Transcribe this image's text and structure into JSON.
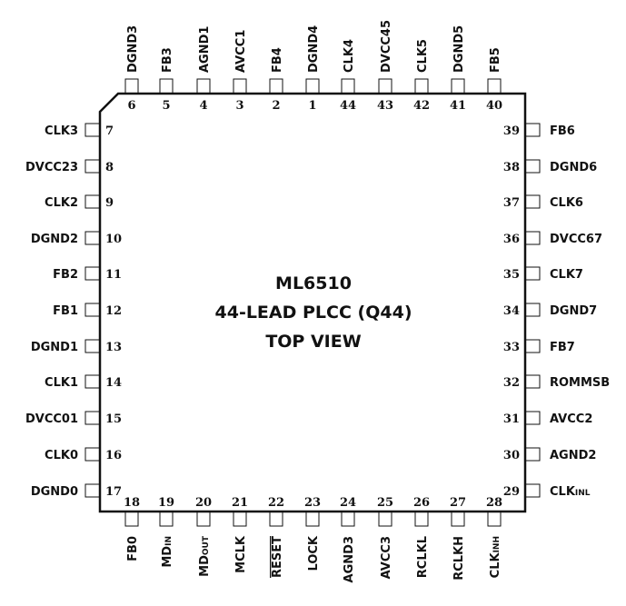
{
  "chip": {
    "title": "ML6510",
    "subtitle": "44-LEAD PLCC (Q44)",
    "view": "TOP VIEW"
  },
  "pins": {
    "top": [
      {
        "num": "6",
        "label": "DGND3"
      },
      {
        "num": "5",
        "label": "FB3"
      },
      {
        "num": "4",
        "label": "AGND1"
      },
      {
        "num": "3",
        "label": "AVCC1"
      },
      {
        "num": "2",
        "label": "FB4"
      },
      {
        "num": "1",
        "label": "DGND4"
      },
      {
        "num": "44",
        "label": "CLK4"
      },
      {
        "num": "43",
        "label": "DVCC45"
      },
      {
        "num": "42",
        "label": "CLK5"
      },
      {
        "num": "41",
        "label": "DGND5"
      },
      {
        "num": "40",
        "label": "FB5"
      }
    ],
    "left": [
      {
        "num": "7",
        "label": "CLK3"
      },
      {
        "num": "8",
        "label": "DVCC23"
      },
      {
        "num": "9",
        "label": "CLK2"
      },
      {
        "num": "10",
        "label": "DGND2"
      },
      {
        "num": "11",
        "label": "FB2"
      },
      {
        "num": "12",
        "label": "FB1"
      },
      {
        "num": "13",
        "label": "DGND1"
      },
      {
        "num": "14",
        "label": "CLK1"
      },
      {
        "num": "15",
        "label": "DVCC01"
      },
      {
        "num": "16",
        "label": "CLK0"
      },
      {
        "num": "17",
        "label": "DGND0"
      }
    ],
    "right": [
      {
        "num": "39",
        "label": "FB6"
      },
      {
        "num": "38",
        "label": "DGND6"
      },
      {
        "num": "37",
        "label": "CLK6"
      },
      {
        "num": "36",
        "label": "DVCC67"
      },
      {
        "num": "35",
        "label": "CLK7"
      },
      {
        "num": "34",
        "label": "DGND7"
      },
      {
        "num": "33",
        "label": "FB7"
      },
      {
        "num": "32",
        "label": "ROMMSB"
      },
      {
        "num": "31",
        "label": "AVCC2"
      },
      {
        "num": "30",
        "label": "AGND2"
      },
      {
        "num": "29",
        "label": "CLK",
        "sub": "INL"
      }
    ],
    "bottom": [
      {
        "num": "18",
        "label": "FB0"
      },
      {
        "num": "19",
        "label": "MD",
        "sub": "IN"
      },
      {
        "num": "20",
        "label": "MD",
        "sub": "OUT"
      },
      {
        "num": "21",
        "label": "MCLK"
      },
      {
        "num": "22",
        "label": "RESET",
        "overline": true
      },
      {
        "num": "23",
        "label": "LOCK"
      },
      {
        "num": "24",
        "label": "AGND3"
      },
      {
        "num": "25",
        "label": "AVCC3"
      },
      {
        "num": "26",
        "label": "RCLKL"
      },
      {
        "num": "27",
        "label": "RCLKH"
      },
      {
        "num": "28",
        "label": "CLK",
        "sub": "INH"
      }
    ]
  }
}
